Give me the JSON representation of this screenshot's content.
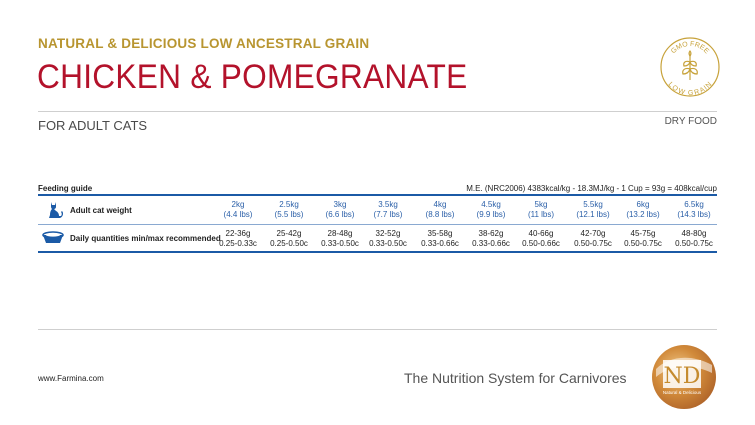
{
  "header": {
    "subtitle": "NATURAL & DELICIOUS LOW ANCESTRAL GRAIN",
    "title": "CHICKEN & POMEGRANATE",
    "for_text": "FOR ADULT CATS",
    "food_type": "DRY FOOD"
  },
  "badge": {
    "top_text": "GMO FREE",
    "bottom_text": "LOW GRAIN",
    "color": "#c7a23a",
    "icon": "wheat-icon"
  },
  "feeding": {
    "label": "Feeding guide",
    "energy": "M.E. (NRC2006) 4383kcal/kg - 18.3MJ/kg - 1 Cup = 93g = 408kcal/cup",
    "weight_row_label": "Adult cat weight",
    "quantity_row_label": "Daily quantities min/max recommended",
    "weights": [
      {
        "kg": "2kg",
        "lbs": "(4.4 lbs)"
      },
      {
        "kg": "2.5kg",
        "lbs": "(5.5 lbs)"
      },
      {
        "kg": "3kg",
        "lbs": "(6.6 lbs)"
      },
      {
        "kg": "3.5kg",
        "lbs": "(7.7 lbs)"
      },
      {
        "kg": "4kg",
        "lbs": "(8.8 lbs)"
      },
      {
        "kg": "4.5kg",
        "lbs": "(9.9 lbs)"
      },
      {
        "kg": "5kg",
        "lbs": "(11 lbs)"
      },
      {
        "kg": "5.5kg",
        "lbs": "(12.1 lbs)"
      },
      {
        "kg": "6kg",
        "lbs": "(13.2 lbs)"
      },
      {
        "kg": "6.5kg",
        "lbs": "(14.3 lbs)"
      }
    ],
    "quantities": [
      {
        "grams": "22-36g",
        "cups": "0.25-0.33c"
      },
      {
        "grams": "25-42g",
        "cups": "0.25-0.50c"
      },
      {
        "grams": "28-48g",
        "cups": "0.33-0.50c"
      },
      {
        "grams": "32-52g",
        "cups": "0.33-0.50c"
      },
      {
        "grams": "35-58g",
        "cups": "0.33-0.66c"
      },
      {
        "grams": "38-62g",
        "cups": "0.33-0.66c"
      },
      {
        "grams": "40-66g",
        "cups": "0.50-0.66c"
      },
      {
        "grams": "42-70g",
        "cups": "0.50-0.75c"
      },
      {
        "grams": "45-75g",
        "cups": "0.50-0.75c"
      },
      {
        "grams": "48-80g",
        "cups": "0.50-0.75c"
      }
    ]
  },
  "footer": {
    "url": "www.Farmina.com",
    "tagline": "The Nutrition System for Carnivores",
    "logo_text": "ND",
    "logo_subtext": "Natural & Delicious"
  },
  "colors": {
    "title_red": "#b3122b",
    "subtitle_gold": "#b89530",
    "table_blue": "#1b5aa6"
  }
}
